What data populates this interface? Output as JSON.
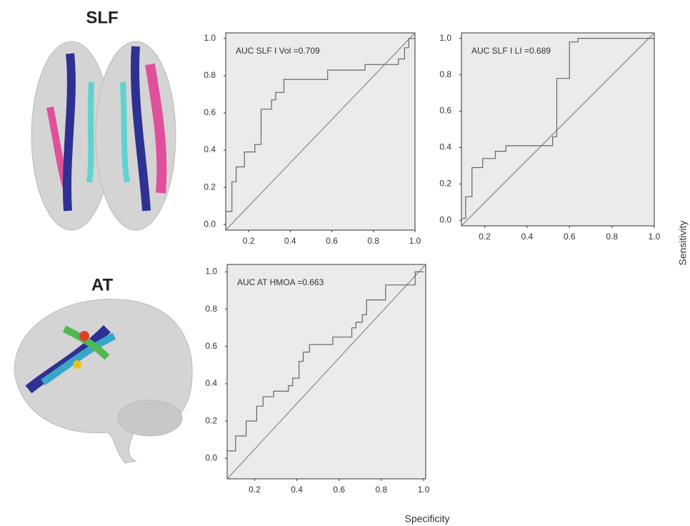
{
  "figure": {
    "row_labels": [
      "SLF",
      "AT"
    ],
    "y_label": "Sensitivity",
    "x_label": "Specificity"
  },
  "chart_data": [
    {
      "type": "line",
      "annotation": "AUC SLF I Vol =0.709",
      "color": "#666666",
      "background": "#ebebeb",
      "x": [
        0.09,
        0.12,
        0.12,
        0.14,
        0.14,
        0.18,
        0.18,
        0.23,
        0.23,
        0.26,
        0.26,
        0.31,
        0.31,
        0.33,
        0.33,
        0.37,
        0.37,
        0.58,
        0.58,
        0.76,
        0.76,
        0.92,
        0.92,
        0.95,
        0.95,
        0.97,
        0.97,
        1.0
      ],
      "values": [
        0.07,
        0.07,
        0.23,
        0.23,
        0.31,
        0.31,
        0.39,
        0.39,
        0.43,
        0.43,
        0.62,
        0.62,
        0.67,
        0.67,
        0.71,
        0.71,
        0.78,
        0.78,
        0.83,
        0.83,
        0.86,
        0.86,
        0.89,
        0.89,
        0.95,
        0.95,
        1.0,
        1.0
      ],
      "xlim": [
        0.09,
        1.0
      ],
      "ylim": [
        -0.03,
        1.03
      ],
      "xticks": [
        0.2,
        0.4,
        0.6,
        0.8,
        {
          "value": 1,
          "label": "1.0"
        }
      ],
      "yticks": [
        {
          "value": 0,
          "label": "0.0"
        },
        0.2,
        0.4,
        0.6,
        0.8,
        {
          "value": 1,
          "label": "1.0"
        }
      ]
    },
    {
      "type": "line",
      "annotation": "AUC SLF I LI =0.689",
      "color": "#666666",
      "background": "#ebebeb",
      "x": [
        0.09,
        0.11,
        0.11,
        0.14,
        0.14,
        0.19,
        0.19,
        0.25,
        0.25,
        0.3,
        0.3,
        0.52,
        0.52,
        0.54,
        0.54,
        0.6,
        0.6,
        0.64,
        0.64,
        1.0
      ],
      "values": [
        0.01,
        0.01,
        0.13,
        0.13,
        0.29,
        0.29,
        0.34,
        0.34,
        0.38,
        0.38,
        0.41,
        0.41,
        0.46,
        0.46,
        0.78,
        0.78,
        0.98,
        0.98,
        1.0,
        1.0
      ],
      "xlim": [
        0.09,
        1.0
      ],
      "ylim": [
        -0.03,
        1.03
      ],
      "xticks": [
        0.2,
        0.4,
        0.6,
        0.8,
        {
          "value": 1,
          "label": "1.0"
        }
      ],
      "yticks": [
        {
          "value": 0,
          "label": "0.0"
        },
        0.2,
        0.4,
        0.6,
        0.8,
        {
          "value": 1,
          "label": "1.0"
        }
      ]
    },
    {
      "type": "line",
      "annotation": "AUC AT HMOA =0.663",
      "color": "#666666",
      "background": "#ebebeb",
      "x": [
        0.07,
        0.11,
        0.11,
        0.16,
        0.16,
        0.21,
        0.21,
        0.24,
        0.24,
        0.29,
        0.29,
        0.36,
        0.36,
        0.38,
        0.38,
        0.41,
        0.41,
        0.43,
        0.43,
        0.46,
        0.46,
        0.57,
        0.57,
        0.66,
        0.66,
        0.68,
        0.68,
        0.71,
        0.71,
        0.73,
        0.73,
        0.82,
        0.82,
        0.96,
        0.96,
        1.0
      ],
      "values": [
        0.04,
        0.04,
        0.12,
        0.12,
        0.2,
        0.2,
        0.28,
        0.28,
        0.33,
        0.33,
        0.36,
        0.36,
        0.39,
        0.39,
        0.43,
        0.43,
        0.52,
        0.52,
        0.57,
        0.57,
        0.61,
        0.61,
        0.65,
        0.65,
        0.7,
        0.7,
        0.73,
        0.73,
        0.77,
        0.77,
        0.85,
        0.85,
        0.93,
        0.93,
        1.0,
        1.0
      ],
      "xlim": [
        0.07,
        1.01
      ],
      "ylim": [
        -0.11,
        1.04
      ],
      "xticks": [
        0.2,
        0.4,
        0.6,
        0.8,
        {
          "value": 1,
          "label": "1.0"
        }
      ],
      "yticks": [
        {
          "value": 0,
          "label": "0.0"
        },
        0.2,
        0.4,
        0.6,
        0.8,
        {
          "value": 1,
          "label": "1.0"
        }
      ]
    }
  ]
}
